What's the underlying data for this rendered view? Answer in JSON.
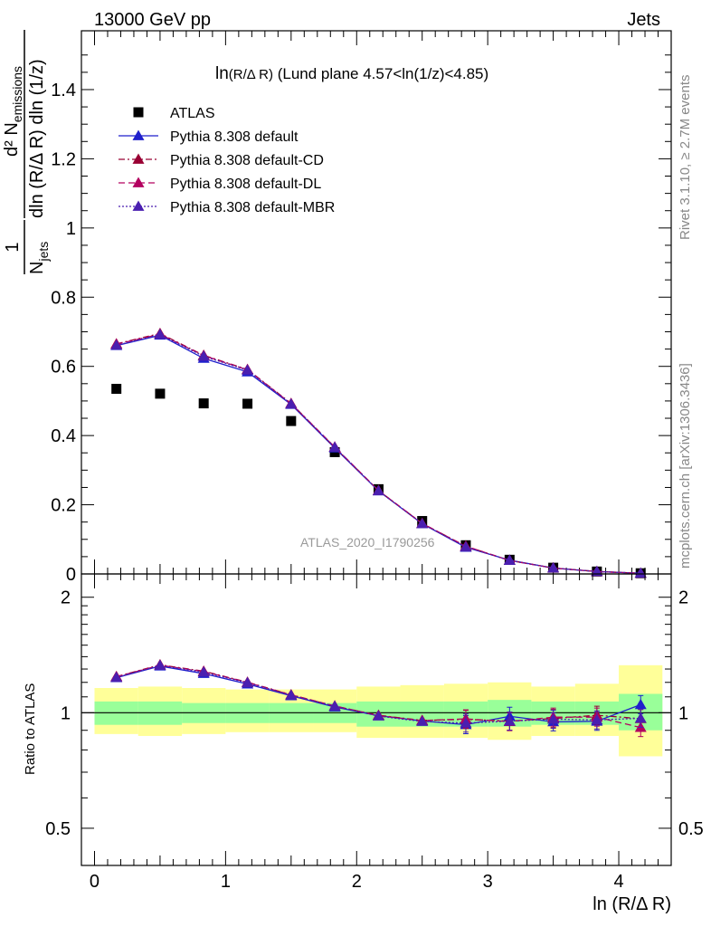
{
  "header": {
    "left": "13000 GeV pp",
    "right": "Jets"
  },
  "side_labels": {
    "rivet": "Rivet 3.1.10, ≥ 2.7M events",
    "mcplots": "mcplots.cern.ch [arXiv:1306.3436]"
  },
  "watermark": "ATLAS_2020_I1790256",
  "colors": {
    "atlas": "#000000",
    "default": "#1f1fcc",
    "cd": "#990033",
    "dl": "#b3005f",
    "mbr": "#4a1fb0",
    "band_inner": "#99ff99",
    "band_outer": "#ffff99"
  },
  "chart_data": [
    {
      "type": "scatter",
      "panel": "main",
      "title": "ln(R/Δ R) (Lund plane 4.57<ln(1/z)<4.85)",
      "title_parts": {
        "main": "ln",
        "sub": "(R/Δ R)",
        "rest": " (Lund plane 4.57<ln(1/z)<4.85)"
      },
      "ylabel": "1/N_jets d²N_emissions / dln(R/Δ R) dln(1/z)",
      "ylabel_parts": {
        "num": "1",
        "den_main": "N",
        "den_sub": "jets",
        "right_num": "d² N",
        "right_num_sub": "emissions",
        "right_den": "dln (R/Δ R) dln (1/z)"
      },
      "xlim": [
        -0.1,
        4.4
      ],
      "ylim": [
        0,
        1.57
      ],
      "yticks": [
        0.2,
        0.4,
        0.6,
        0.8,
        1,
        1.2,
        1.4
      ],
      "ytick_labels": [
        "0.2",
        "0.4",
        "0.6",
        "0.8",
        "1",
        "1.2",
        "1.4"
      ],
      "x": [
        0.167,
        0.5,
        0.833,
        1.167,
        1.5,
        1.833,
        2.167,
        2.5,
        2.833,
        3.167,
        3.5,
        3.833,
        4.167
      ],
      "series": [
        {
          "name": "ATLAS",
          "marker": "square",
          "color_key": "atlas",
          "values": [
            0.535,
            0.521,
            0.493,
            0.492,
            0.442,
            0.352,
            0.245,
            0.153,
            0.083,
            0.041,
            0.018,
            0.007,
            0.002
          ]
        },
        {
          "name": "Pythia 8.308 default",
          "marker": "triangle",
          "line": "solid",
          "color_key": "default",
          "values": [
            0.66,
            0.69,
            0.623,
            0.584,
            0.49,
            0.364,
            0.24,
            0.145,
            0.077,
            0.04,
            0.017,
            0.007,
            0.002
          ]
        },
        {
          "name": "Pythia 8.308 default-CD",
          "marker": "triangle",
          "line": "dashdot",
          "color_key": "cd",
          "values": [
            0.665,
            0.695,
            0.632,
            0.591,
            0.493,
            0.366,
            0.241,
            0.146,
            0.08,
            0.039,
            0.017,
            0.007,
            0.002
          ]
        },
        {
          "name": "Pythia 8.308 default-DL",
          "marker": "triangle",
          "line": "dashed",
          "color_key": "dl",
          "values": [
            0.664,
            0.693,
            0.631,
            0.59,
            0.492,
            0.367,
            0.241,
            0.146,
            0.08,
            0.039,
            0.017,
            0.007,
            0.002
          ]
        },
        {
          "name": "Pythia 8.308 default-MBR",
          "marker": "triangle",
          "line": "dotted",
          "color_key": "mbr",
          "values": [
            0.661,
            0.692,
            0.629,
            0.589,
            0.491,
            0.366,
            0.24,
            0.145,
            0.078,
            0.039,
            0.017,
            0.007,
            0.002
          ]
        }
      ]
    },
    {
      "type": "line",
      "panel": "ratio",
      "ylabel": "Ratio to ATLAS",
      "xlabel": "ln (R/Δ R)",
      "log_y": true,
      "xlim": [
        -0.1,
        4.4
      ],
      "ylim": [
        0.4,
        2.3
      ],
      "xticks": [
        0,
        1,
        2,
        3,
        4
      ],
      "xtick_labels": [
        "0",
        "1",
        "2",
        "3",
        "4"
      ],
      "yticks": [
        0.5,
        1,
        2
      ],
      "ytick_labels": [
        "0.5",
        "1",
        "2"
      ],
      "x": [
        0.167,
        0.5,
        0.833,
        1.167,
        1.5,
        1.833,
        2.167,
        2.5,
        2.833,
        3.167,
        3.5,
        3.833,
        4.167
      ],
      "bins": [
        0,
        0.333,
        0.667,
        1.0,
        1.333,
        1.667,
        2.0,
        2.333,
        2.667,
        3.0,
        3.333,
        3.667,
        4.0,
        4.333
      ],
      "band_inner": [
        [
          0.93,
          1.07
        ],
        [
          0.93,
          1.07
        ],
        [
          0.94,
          1.06
        ],
        [
          0.94,
          1.06
        ],
        [
          0.94,
          1.06
        ],
        [
          0.94,
          1.06
        ],
        [
          0.92,
          1.07
        ],
        [
          0.92,
          1.07
        ],
        [
          0.92,
          1.07
        ],
        [
          0.92,
          1.08
        ],
        [
          0.93,
          1.07
        ],
        [
          0.93,
          1.07
        ],
        [
          0.9,
          1.12
        ]
      ],
      "band_outer": [
        [
          0.88,
          1.16
        ],
        [
          0.87,
          1.17
        ],
        [
          0.88,
          1.16
        ],
        [
          0.89,
          1.15
        ],
        [
          0.89,
          1.15
        ],
        [
          0.89,
          1.15
        ],
        [
          0.86,
          1.17
        ],
        [
          0.86,
          1.18
        ],
        [
          0.86,
          1.19
        ],
        [
          0.85,
          1.2
        ],
        [
          0.87,
          1.17
        ],
        [
          0.87,
          1.19
        ],
        [
          0.77,
          1.33
        ]
      ],
      "series": [
        {
          "name": "Pythia 8.308 default",
          "color_key": "default",
          "line": "solid",
          "values": [
            1.234,
            1.323,
            1.265,
            1.188,
            1.107,
            1.035,
            0.982,
            0.952,
            0.931,
            0.979,
            0.947,
            0.95,
            1.05
          ]
        },
        {
          "name": "Pythia 8.308 default-CD",
          "color_key": "cd",
          "line": "dashdot",
          "values": [
            1.242,
            1.333,
            1.283,
            1.201,
            1.114,
            1.04,
            0.985,
            0.955,
            0.961,
            0.951,
            0.966,
            0.985,
            0.965
          ]
        },
        {
          "name": "Pythia 8.308 default-DL",
          "color_key": "dl",
          "line": "dashed",
          "values": [
            1.241,
            1.33,
            1.28,
            1.199,
            1.113,
            1.042,
            0.983,
            0.954,
            0.964,
            0.948,
            0.974,
            0.974,
            0.915
          ]
        },
        {
          "name": "Pythia 8.308 default-MBR",
          "color_key": "mbr",
          "line": "dotted",
          "values": [
            1.236,
            1.328,
            1.276,
            1.197,
            1.111,
            1.04,
            0.98,
            0.949,
            0.94,
            0.951,
            0.962,
            0.958,
            0.967
          ]
        }
      ]
    }
  ]
}
